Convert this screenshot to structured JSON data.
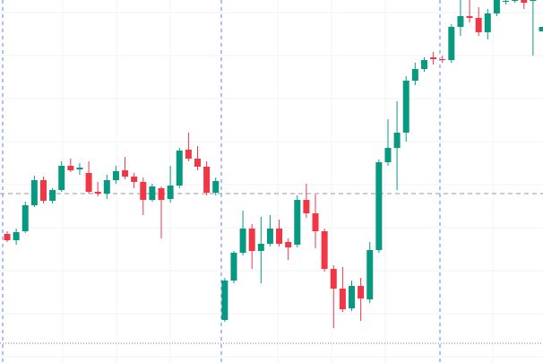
{
  "chart_data": {
    "type": "candlestick",
    "ylim": [
      0,
      405
    ],
    "up_color": "#089981",
    "down_color": "#f23645",
    "open": [
      144,
      137,
      147,
      176,
      204,
      181,
      193,
      220,
      216,
      212,
      191,
      189,
      204,
      215,
      208,
      202,
      182,
      195,
      183,
      198,
      238,
      228,
      219,
      190,
      48,
      92,
      123,
      150,
      125,
      133,
      150,
      135,
      132,
      182,
      167,
      147,
      105,
      83,
      61,
      86,
      71,
      126,
      224,
      240,
      257,
      315,
      328,
      341,
      339,
      338,
      375,
      387,
      385,
      369,
      390,
      403,
      404,
      405,
      405,
      370
    ],
    "close": [
      137,
      146,
      176,
      204,
      181,
      193,
      220,
      215,
      218,
      191,
      189,
      204,
      214,
      208,
      202,
      182,
      197,
      182,
      198,
      237,
      228,
      219,
      190,
      203,
      92,
      123,
      150,
      125,
      133,
      150,
      133,
      129,
      182,
      167,
      147,
      105,
      83,
      60,
      86,
      72,
      126,
      224,
      240,
      257,
      315,
      328,
      338,
      339,
      338,
      375,
      387,
      385,
      369,
      390,
      405,
      404,
      405,
      402,
      405,
      375
    ],
    "high": [
      147,
      150,
      180,
      209,
      208,
      195,
      225,
      228,
      223,
      225,
      202,
      210,
      220,
      230,
      212,
      207,
      200,
      197,
      220,
      240,
      257,
      242,
      225,
      207,
      95,
      125,
      170,
      155,
      163,
      165,
      160,
      139,
      187,
      200,
      188,
      150,
      109,
      107,
      92,
      95,
      135,
      227,
      272,
      292,
      320,
      335,
      341,
      347,
      343,
      378,
      405,
      405,
      397,
      395,
      405,
      405,
      405,
      405,
      405,
      375
    ],
    "low": [
      135,
      132,
      145,
      174,
      178,
      178,
      191,
      213,
      210,
      189,
      186,
      183,
      200,
      205,
      195,
      165,
      180,
      139,
      179,
      195,
      225,
      215,
      187,
      187,
      46,
      89,
      120,
      105,
      89,
      130,
      130,
      115,
      129,
      162,
      128,
      102,
      39,
      57,
      58,
      47,
      67,
      123,
      220,
      193,
      247,
      310,
      325,
      333,
      335,
      335,
      365,
      380,
      365,
      361,
      387,
      400,
      402,
      395,
      343,
      370
    ]
  }
}
